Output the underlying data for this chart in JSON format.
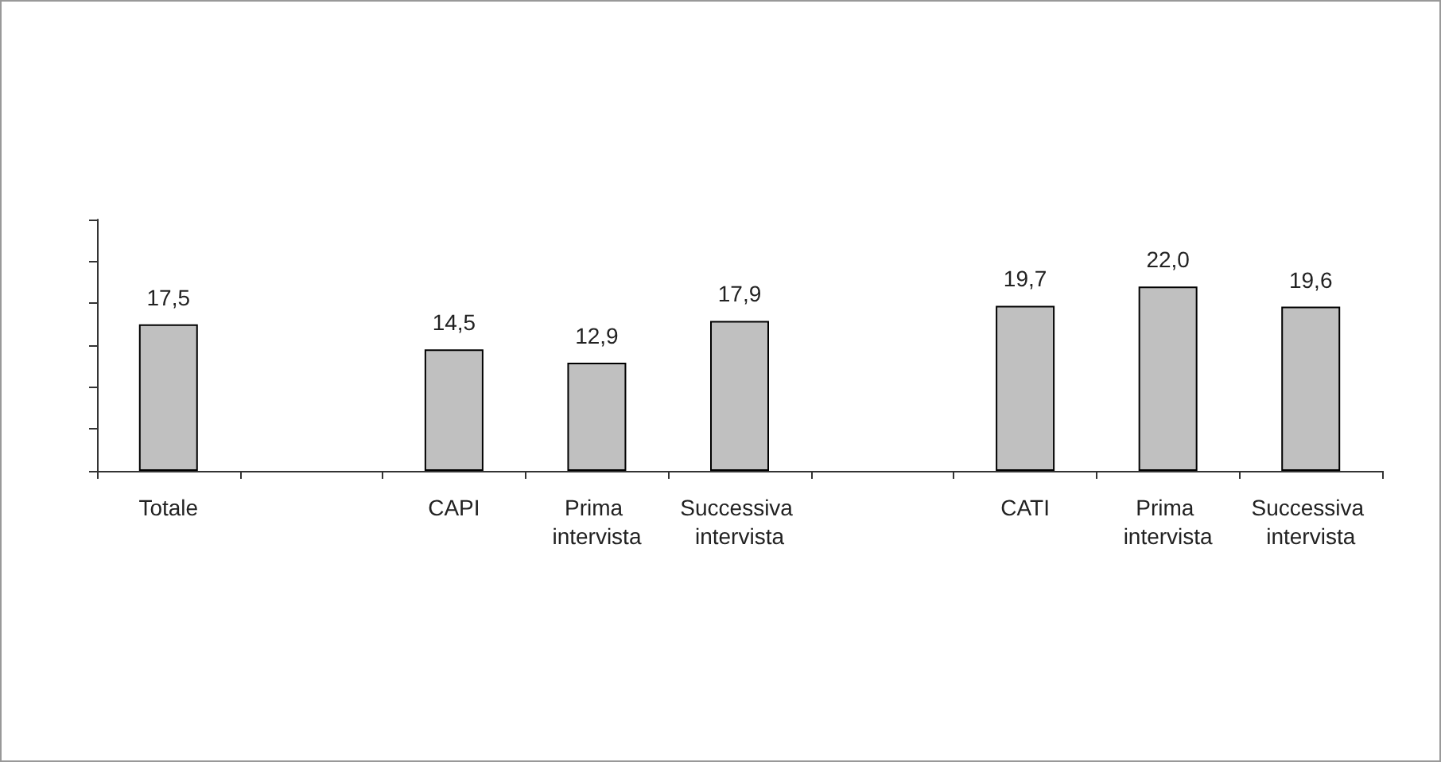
{
  "chart_data": {
    "type": "bar",
    "categories": [
      "Totale",
      null,
      "CAPI",
      "Prima intervista",
      "Successiva intervista",
      null,
      "CATI",
      "Prima intervista",
      "Successiva intervista"
    ],
    "values": [
      17.5,
      null,
      14.5,
      12.9,
      17.9,
      null,
      19.7,
      22.0,
      19.6
    ],
    "color": "#c0c0c0",
    "ylim": [
      0,
      30
    ],
    "yticks": [
      {
        "value": 0,
        "label": null
      },
      {
        "value": 5,
        "label": null
      },
      {
        "value": 10,
        "label": null
      },
      {
        "value": 15,
        "label": null
      },
      {
        "value": 20,
        "label": null
      },
      {
        "value": 25,
        "label": null
      },
      {
        "value": 30,
        "label": null
      }
    ],
    "tick_labels": "x",
    "grid": false,
    "value_labels": [
      "17,5",
      null,
      "14,5",
      "12,9",
      "17,9",
      null,
      "19,7",
      "22,0",
      "19,6"
    ]
  }
}
